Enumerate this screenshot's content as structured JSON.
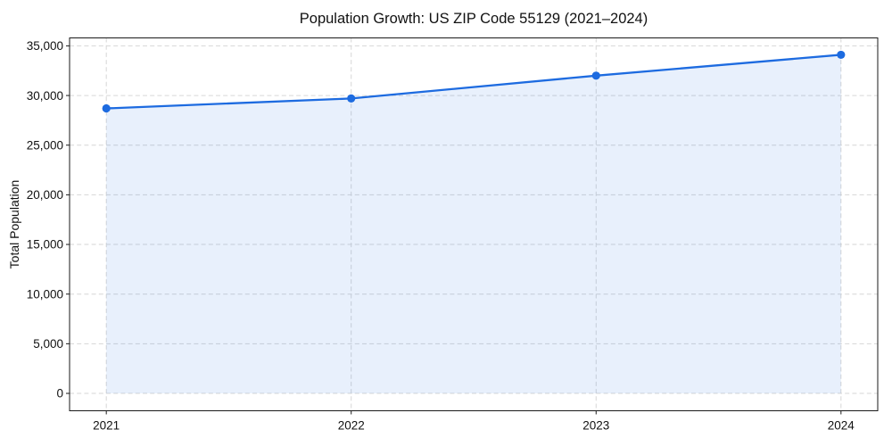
{
  "figure": {
    "background_color": "#ffffff"
  },
  "chart_data": {
    "type": "area",
    "title": "Population Growth: US ZIP Code 55129 (2021–2024)",
    "xlabel": "",
    "ylabel": "Total Population",
    "x": [
      2021,
      2022,
      2023,
      2024
    ],
    "xtick_labels": [
      "2021",
      "2022",
      "2023",
      "2024"
    ],
    "series": [
      {
        "name": "Total Population",
        "values": [
          28700,
          29700,
          32000,
          34100
        ]
      }
    ],
    "yticks": [
      0,
      5000,
      10000,
      15000,
      20000,
      25000,
      30000,
      35000
    ],
    "ytick_labels": [
      "0",
      "5,000",
      "10,000",
      "15,000",
      "20,000",
      "25,000",
      "30,000",
      "35,000"
    ],
    "xlim": [
      2020.85,
      2024.15
    ],
    "ylim": [
      -1750,
      35800
    ],
    "fill_baseline": 0,
    "grid": true,
    "grid_style": "dashed",
    "legend": "none",
    "line_color": "#1d6be0",
    "marker_color": "#1d6be0",
    "fill_color": "rgba(29,107,224,0.10)",
    "grid_color": "#d6d6d6",
    "marker": "circle"
  }
}
